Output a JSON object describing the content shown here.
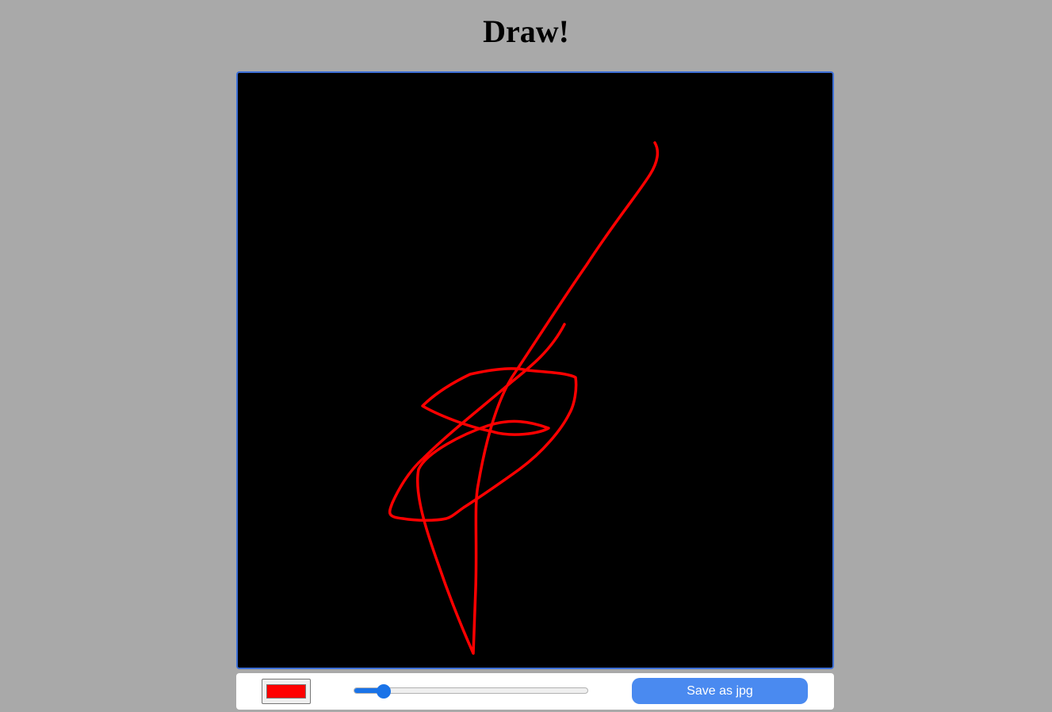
{
  "title": "Draw!",
  "canvas": {
    "background": "#000000"
  },
  "toolbar": {
    "color_value": "#ff0000",
    "brush_size": 0.13,
    "save_label": "Save as jpg"
  },
  "colors": {
    "page_background": "#a9a9a9",
    "canvas_border": "#3d6fd6",
    "button": "#4a8af0",
    "slider_accent": "#1a73e8"
  }
}
